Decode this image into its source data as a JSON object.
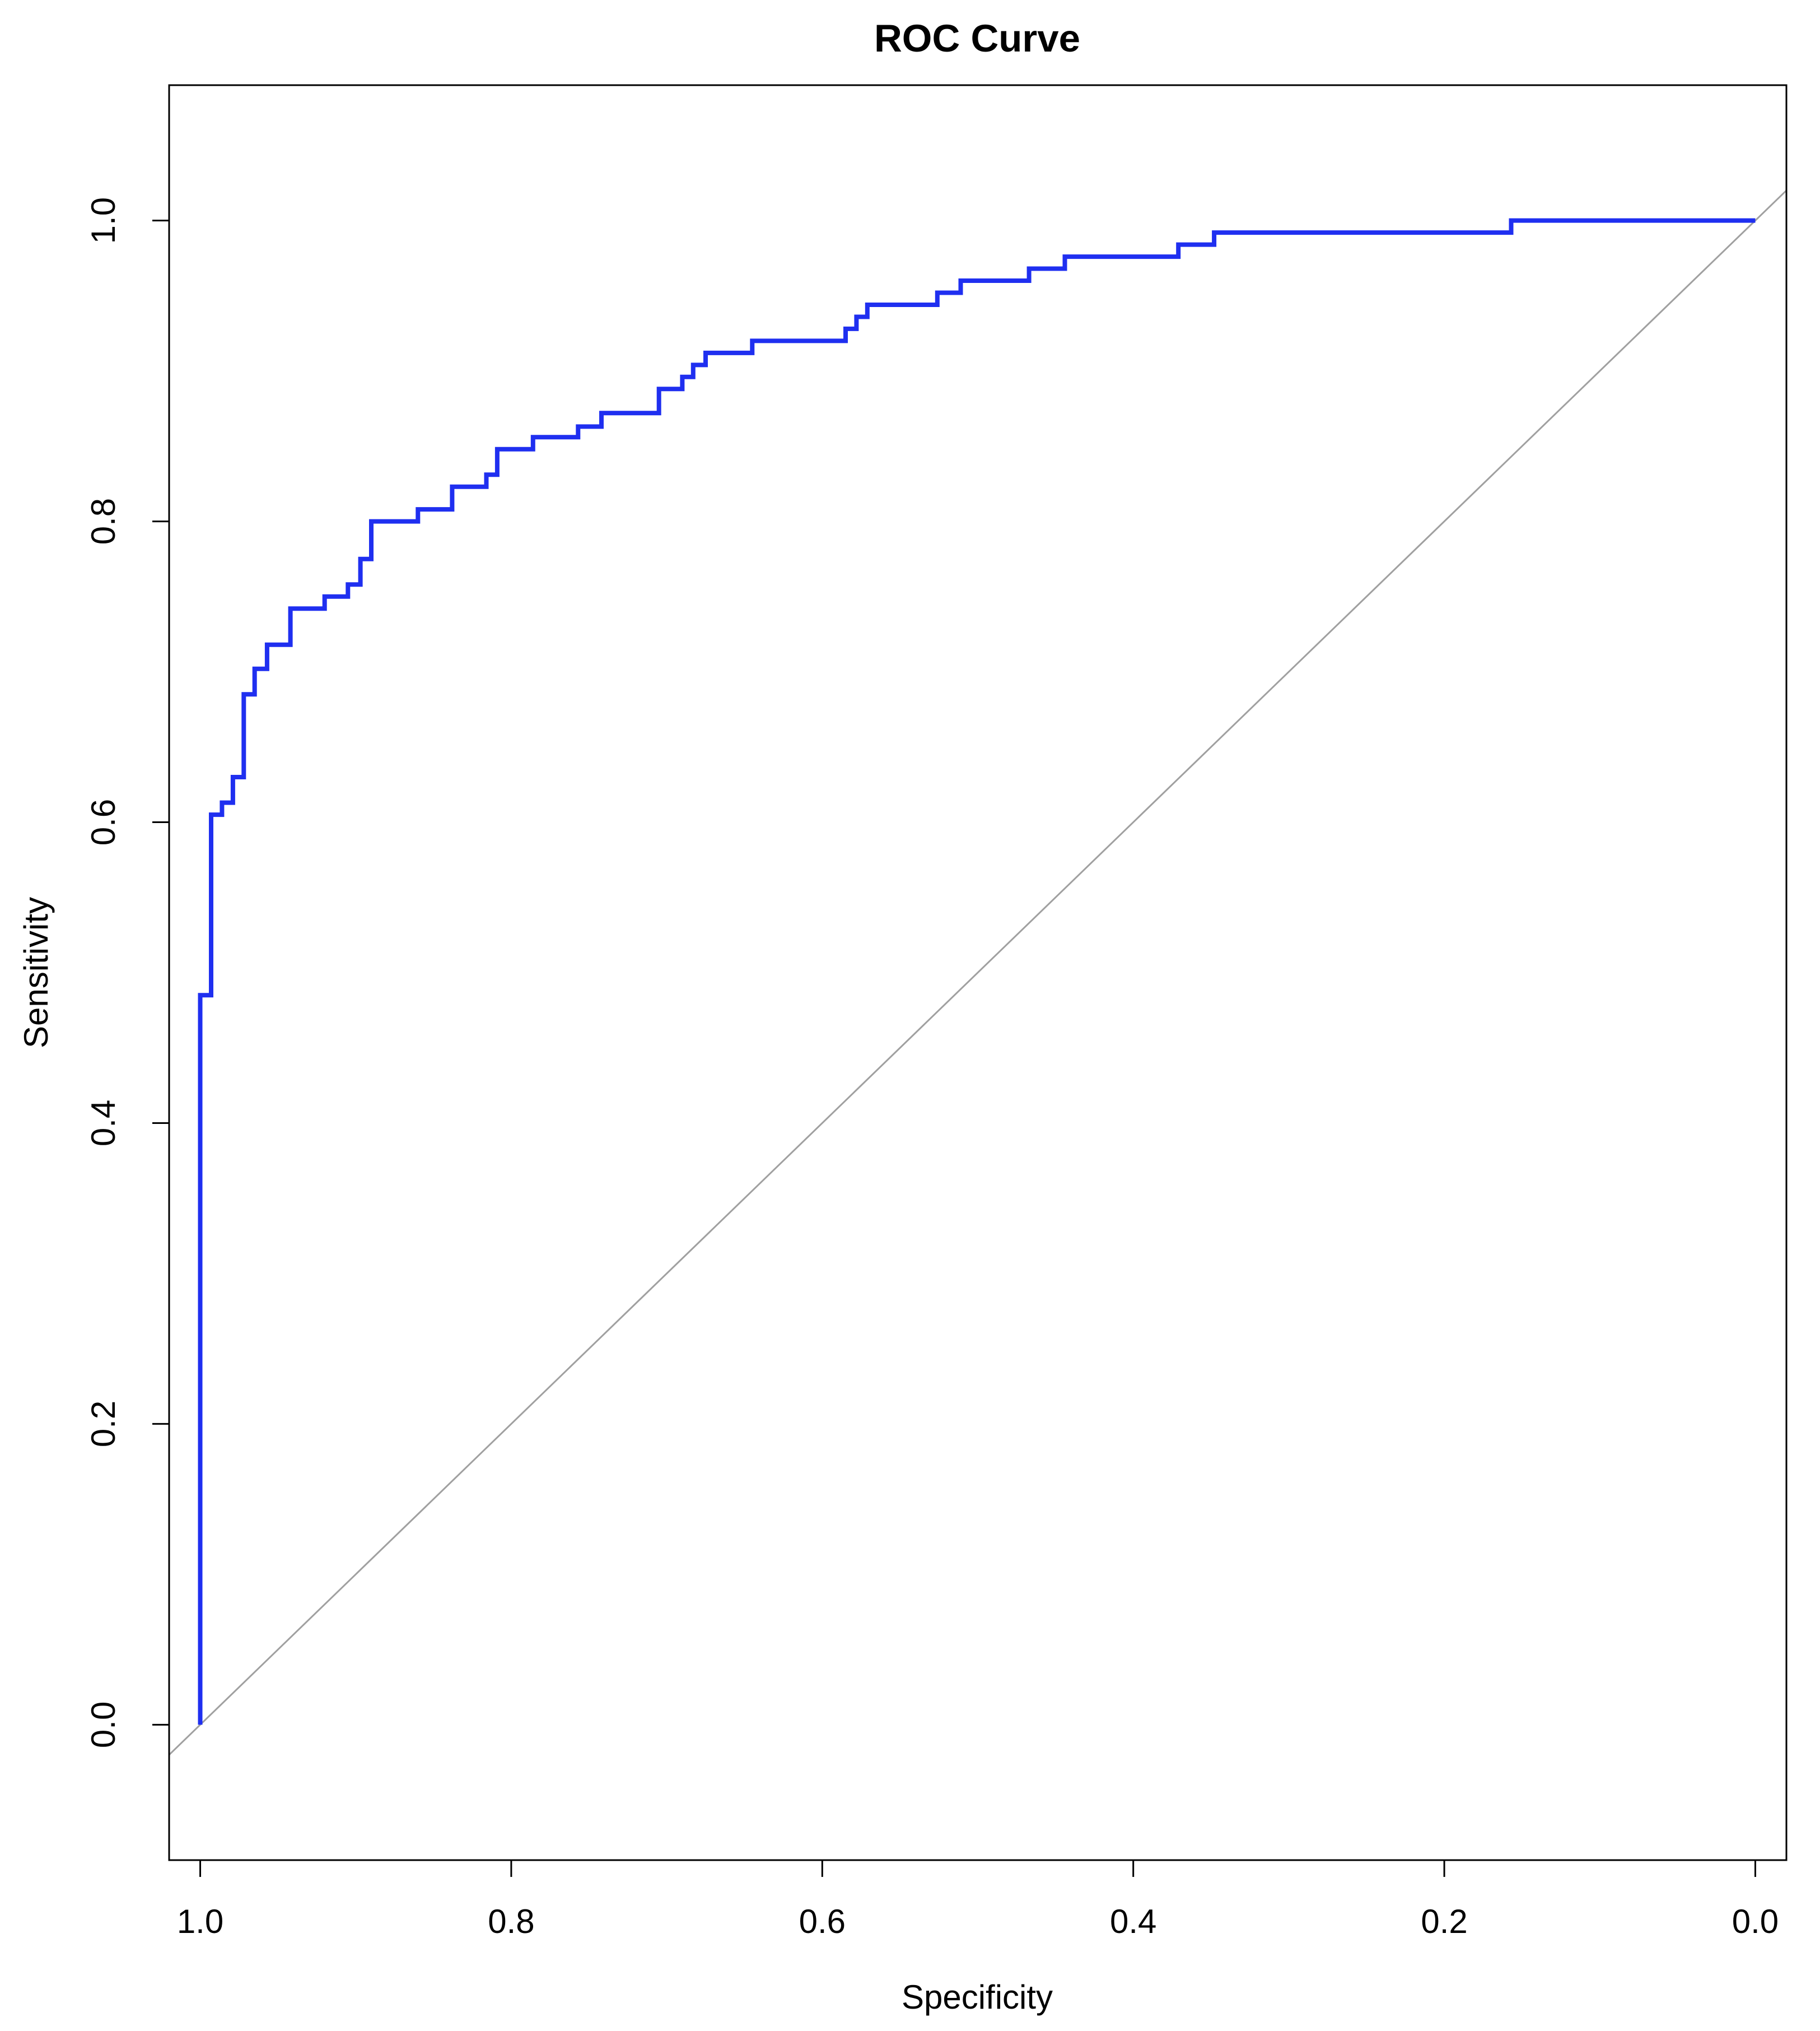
{
  "chart_data": {
    "type": "line",
    "title": "ROC Curve",
    "xlabel": "Specificity",
    "ylabel": "Sensitivity",
    "x_reversed": true,
    "xlim": [
      1.02,
      -0.02
    ],
    "ylim": [
      -0.09,
      1.09
    ],
    "xticks": [
      1.0,
      0.8,
      0.6,
      0.4,
      0.2,
      0.0
    ],
    "xtick_labels": [
      "1.0",
      "0.8",
      "0.6",
      "0.4",
      "0.2",
      "0.0"
    ],
    "yticks": [
      0.0,
      0.2,
      0.4,
      0.6,
      0.8,
      1.0
    ],
    "ytick_labels": [
      "0.0",
      "0.2",
      "0.4",
      "0.6",
      "0.8",
      "1.0"
    ],
    "grid": false,
    "legend": "none",
    "series": [
      {
        "color": "#1f2ff0",
        "x": [
          1.0,
          1.0,
          0.993,
          0.993,
          0.986,
          0.986,
          0.979,
          0.979,
          0.972,
          0.972,
          0.965,
          0.965,
          0.957,
          0.957,
          0.942,
          0.942,
          0.92,
          0.92,
          0.905,
          0.905,
          0.897,
          0.897,
          0.89,
          0.89,
          0.86,
          0.86,
          0.838,
          0.838,
          0.816,
          0.816,
          0.809,
          0.809,
          0.786,
          0.786,
          0.757,
          0.757,
          0.742,
          0.742,
          0.705,
          0.705,
          0.69,
          0.69,
          0.683,
          0.683,
          0.675,
          0.675,
          0.645,
          0.645,
          0.585,
          0.585,
          0.578,
          0.578,
          0.571,
          0.571,
          0.526,
          0.526,
          0.511,
          0.511,
          0.467,
          0.467,
          0.444,
          0.444,
          0.371,
          0.371,
          0.348,
          0.348,
          0.157,
          0.157,
          0.0
        ],
        "y": [
          0.0,
          0.485,
          0.485,
          0.605,
          0.605,
          0.613,
          0.613,
          0.63,
          0.63,
          0.685,
          0.685,
          0.702,
          0.702,
          0.718,
          0.718,
          0.742,
          0.742,
          0.75,
          0.75,
          0.758,
          0.758,
          0.775,
          0.775,
          0.8,
          0.8,
          0.808,
          0.808,
          0.823,
          0.823,
          0.831,
          0.831,
          0.848,
          0.848,
          0.856,
          0.856,
          0.863,
          0.863,
          0.872,
          0.872,
          0.888,
          0.888,
          0.896,
          0.896,
          0.904,
          0.904,
          0.912,
          0.912,
          0.92,
          0.92,
          0.928,
          0.928,
          0.936,
          0.936,
          0.944,
          0.944,
          0.952,
          0.952,
          0.96,
          0.96,
          0.968,
          0.968,
          0.976,
          0.976,
          0.984,
          0.984,
          0.992,
          0.992,
          1.0,
          1.0
        ]
      }
    ],
    "reference_line": {
      "color": "#a0a0a0",
      "x": [
        1.0,
        0.0
      ],
      "y": [
        0.0,
        1.0
      ]
    }
  }
}
